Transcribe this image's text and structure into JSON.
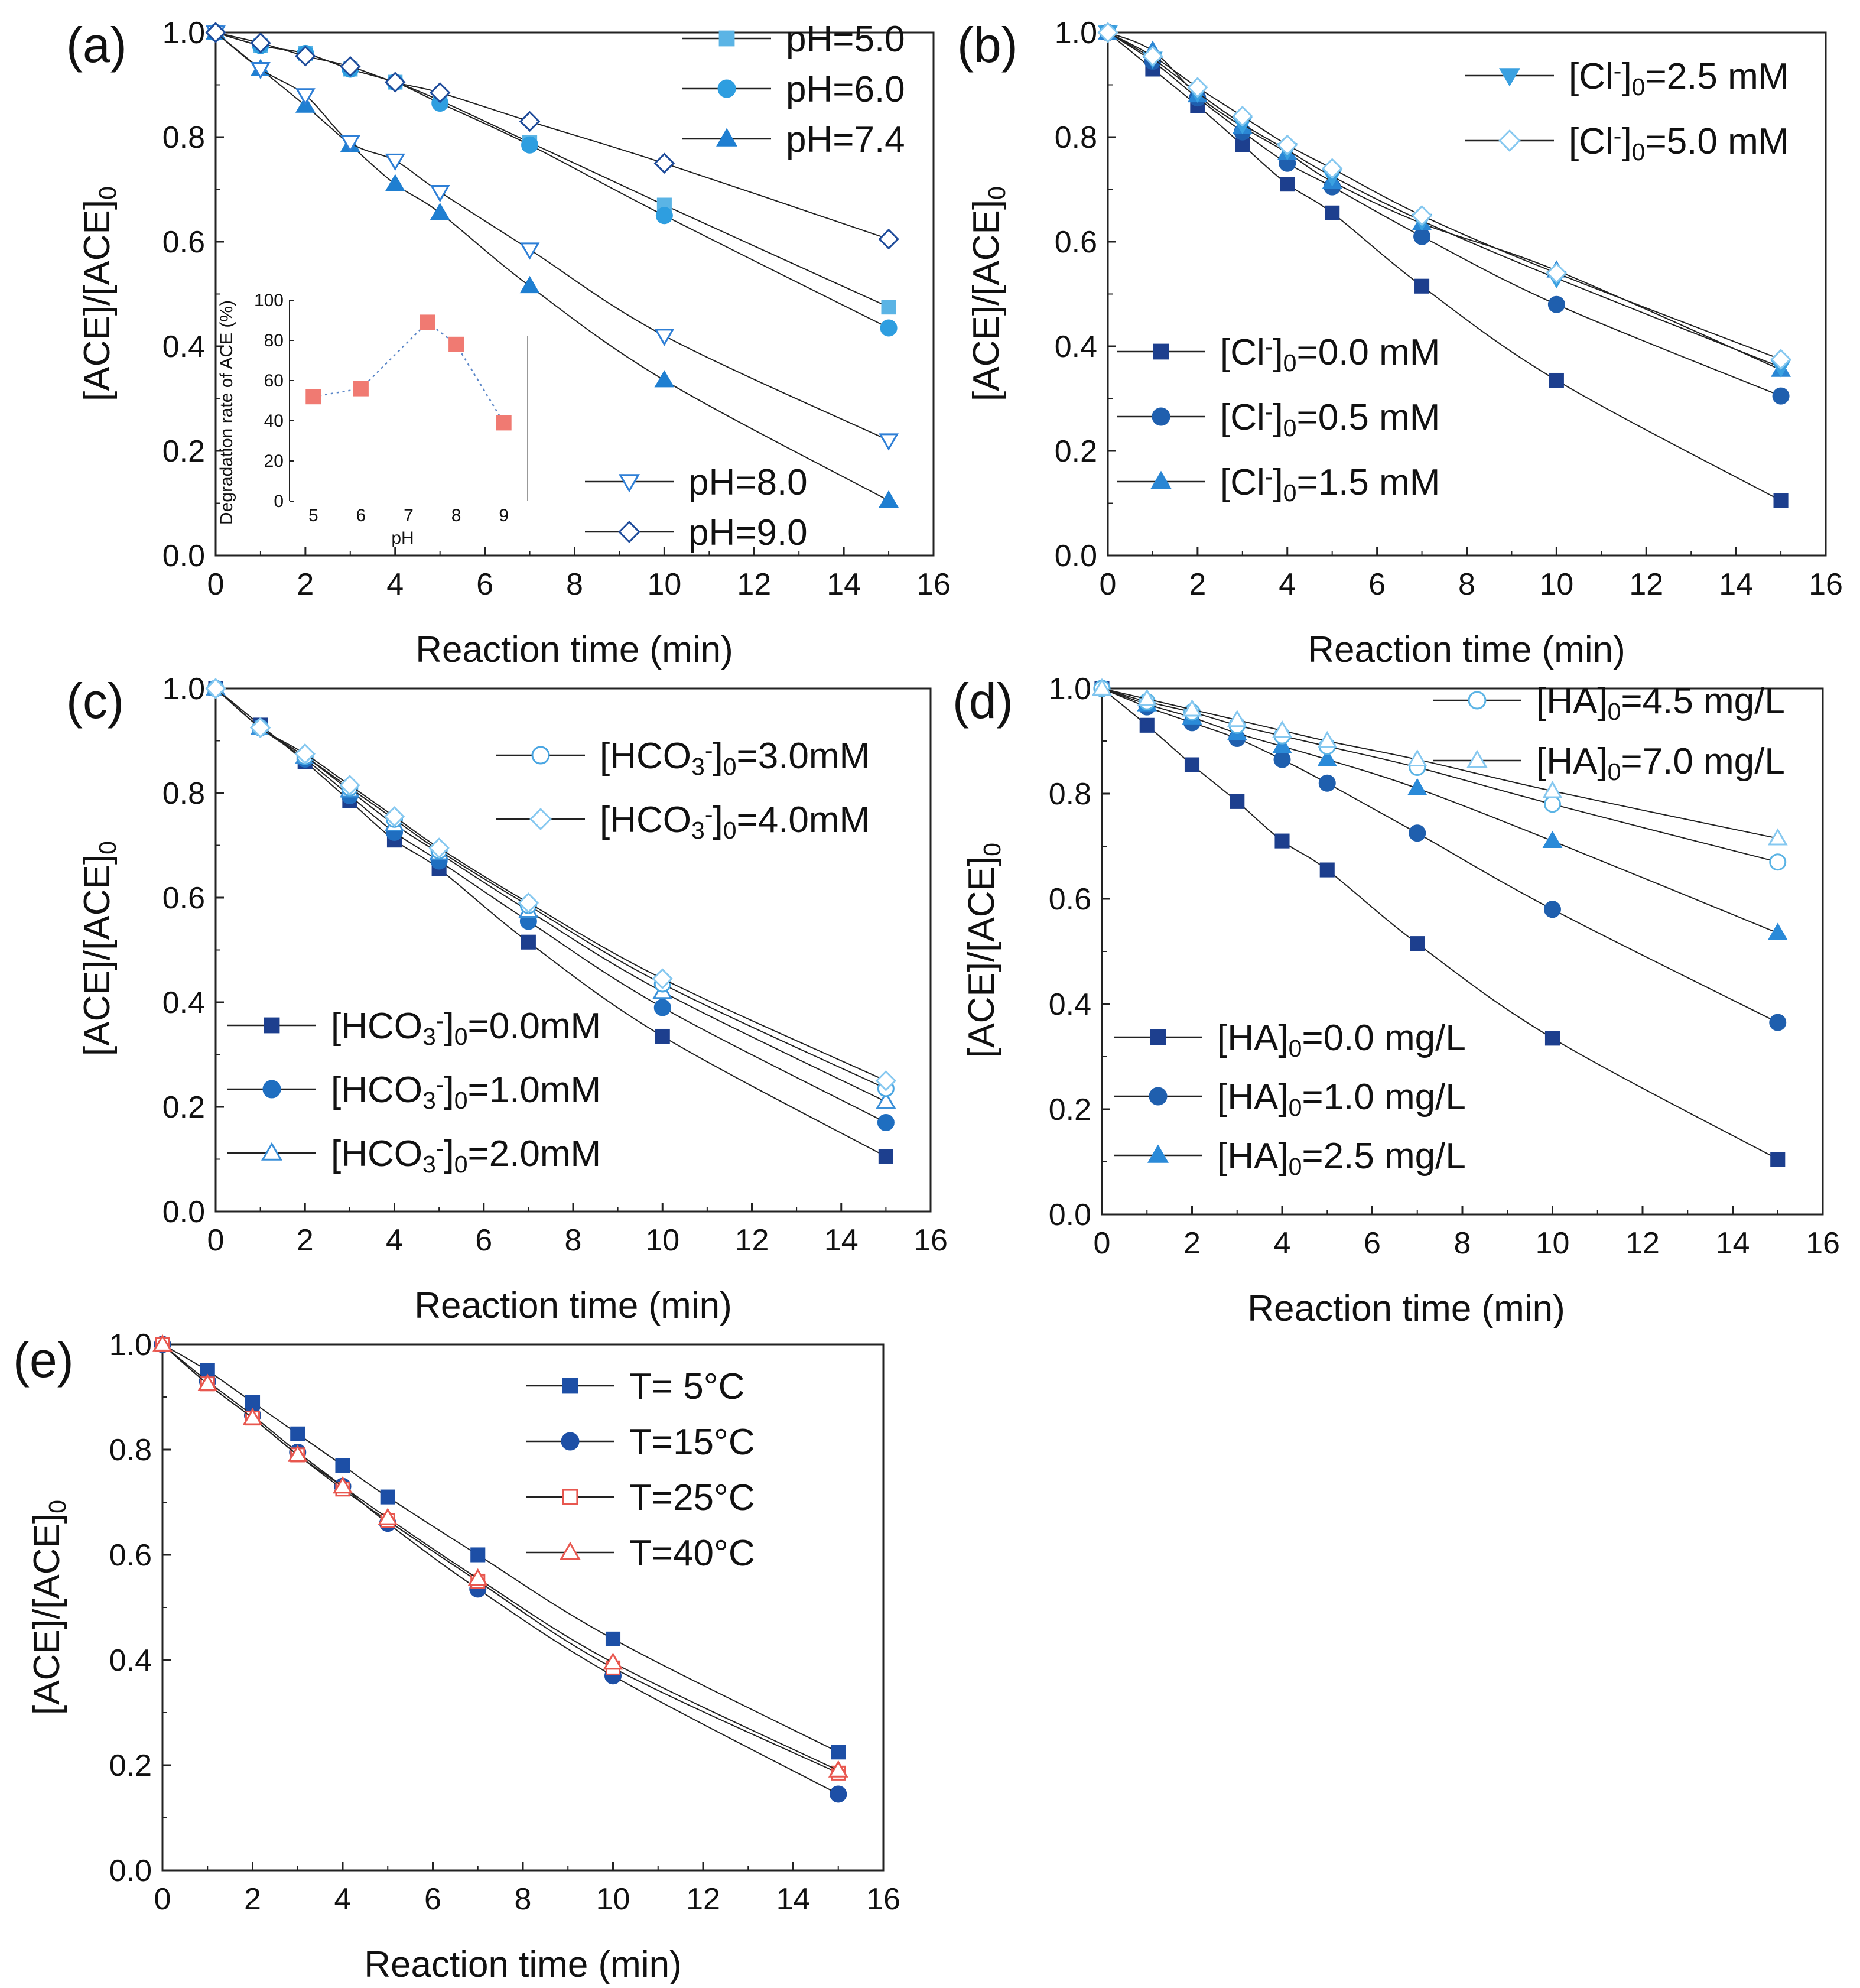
{
  "figure": {
    "panel_letters": [
      "(a)",
      "(b)",
      "(c)",
      "(d)",
      "(e)"
    ]
  },
  "chart_data": [
    {
      "type": "line",
      "panel": "(a)",
      "xlabel": "Reaction time (min)",
      "ylabel": "[ACE]/[ACE]₀",
      "xlim": [
        0,
        16
      ],
      "ylim": [
        0,
        1.0
      ],
      "xticks": [
        "0",
        "2",
        "4",
        "6",
        "8",
        "10",
        "12",
        "14",
        "16"
      ],
      "yticks": [
        "0.0",
        "0.2",
        "0.4",
        "0.6",
        "0.8",
        "1.0"
      ],
      "grid": false,
      "x": [
        0,
        1,
        2,
        3,
        4,
        5,
        7,
        10,
        15
      ],
      "series": [
        {
          "name": "pH=5.0",
          "marker": "square",
          "filled": true,
          "color": "#5bb4e5",
          "line": true,
          "values": [
            1.0,
            0.975,
            0.96,
            0.93,
            0.905,
            0.87,
            0.79,
            0.67,
            0.475
          ]
        },
        {
          "name": "pH=6.0",
          "marker": "circle",
          "filled": true,
          "color": "#2e9ee0",
          "line": true,
          "values": [
            1.0,
            0.975,
            0.96,
            0.93,
            0.905,
            0.865,
            0.785,
            0.65,
            0.435
          ]
        },
        {
          "name": "pH=7.4",
          "marker": "triangle",
          "filled": true,
          "color": "#1f7fd1",
          "line": true,
          "values": [
            1.0,
            0.93,
            0.86,
            0.785,
            0.71,
            0.655,
            0.515,
            0.335,
            0.105
          ]
        },
        {
          "name": "pH=8.0",
          "marker": "triangle-down",
          "filled": false,
          "color": "#2e7fd6",
          "line": true,
          "values": [
            1.0,
            0.93,
            0.88,
            0.79,
            0.755,
            0.695,
            0.585,
            0.42,
            0.22
          ]
        },
        {
          "name": "pH=9.0",
          "marker": "diamond",
          "filled": false,
          "color": "#1e4b9a",
          "line": true,
          "values": [
            1.0,
            0.98,
            0.955,
            0.935,
            0.905,
            0.885,
            0.83,
            0.75,
            0.605
          ]
        }
      ],
      "legend_top": {
        "position": "top-right",
        "entries": [
          "pH=5.0",
          "pH=6.0",
          "pH=7.4"
        ]
      },
      "legend_bottom": {
        "position": "bottom-right",
        "entries": [
          "pH=8.0",
          "pH=9.0"
        ]
      },
      "inset": {
        "type": "scatter",
        "xlabel": "pH",
        "ylabel": "Degradation rate of ACE (%)",
        "xticks": [
          "5",
          "6",
          "7",
          "8",
          "9"
        ],
        "yticks": [
          "0",
          "20",
          "40",
          "60",
          "80",
          "100"
        ],
        "xlim": [
          4.5,
          9.5
        ],
        "ylim": [
          0,
          100
        ],
        "color": "#f07a72",
        "x": [
          5.0,
          6.0,
          7.4,
          8.0,
          9.0
        ],
        "values": [
          52,
          56,
          89,
          78,
          39
        ]
      }
    },
    {
      "type": "line",
      "panel": "(b)",
      "xlabel": "Reaction time (min)",
      "ylabel": "[ACE]/[ACE]₀",
      "xlim": [
        0,
        16
      ],
      "ylim": [
        0,
        1.0
      ],
      "xticks": [
        "0",
        "2",
        "4",
        "6",
        "8",
        "10",
        "12",
        "14",
        "16"
      ],
      "yticks": [
        "0.0",
        "0.2",
        "0.4",
        "0.6",
        "0.8",
        "1.0"
      ],
      "grid": false,
      "x": [
        0,
        1,
        2,
        3,
        4,
        5,
        7,
        10,
        15
      ],
      "series": [
        {
          "name": "[Cl⁻]₀=0.0 mM",
          "marker": "square",
          "filled": true,
          "color": "#1d3f8e",
          "line": true,
          "values": [
            1.0,
            0.93,
            0.86,
            0.785,
            0.71,
            0.655,
            0.515,
            0.335,
            0.105
          ]
        },
        {
          "name": "[Cl⁻]₀=0.5 mM",
          "marker": "circle",
          "filled": true,
          "color": "#1f5fae",
          "line": true,
          "values": [
            1.0,
            0.945,
            0.875,
            0.81,
            0.75,
            0.705,
            0.61,
            0.48,
            0.305
          ]
        },
        {
          "name": "[Cl⁻]₀=1.5 mM",
          "marker": "triangle",
          "filled": true,
          "color": "#2a86d4",
          "line": true,
          "values": [
            1.0,
            0.965,
            0.88,
            0.82,
            0.77,
            0.715,
            0.635,
            0.545,
            0.355
          ]
        },
        {
          "name": "[Cl⁻]₀=2.5 mM",
          "marker": "triangle-down",
          "filled": true,
          "color": "#3aa0e0",
          "line": true,
          "values": [
            1.0,
            0.95,
            0.885,
            0.825,
            0.775,
            0.725,
            0.64,
            0.53,
            0.36
          ]
        },
        {
          "name": "[Cl⁻]₀=5.0 mM",
          "marker": "diamond",
          "filled": false,
          "color": "#86c8f0",
          "line": true,
          "values": [
            1.0,
            0.955,
            0.895,
            0.84,
            0.785,
            0.74,
            0.65,
            0.54,
            0.375
          ]
        }
      ],
      "legend_top": {
        "position": "top-right",
        "entries": [
          "[Cl⁻]₀=2.5 mM",
          "[Cl⁻]₀=5.0 mM"
        ]
      },
      "legend_bottom": {
        "position": "bottom-left",
        "entries": [
          "[Cl⁻]₀=0.0 mM",
          "[Cl⁻]₀=0.5 mM",
          "[Cl⁻]₀=1.5 mM"
        ]
      }
    },
    {
      "type": "line",
      "panel": "(c)",
      "xlabel": "Reaction time (min)",
      "ylabel": "[ACE]/[ACE]₀",
      "xlim": [
        0,
        16
      ],
      "ylim": [
        0,
        1.0
      ],
      "xticks": [
        "0",
        "2",
        "4",
        "6",
        "8",
        "10",
        "12",
        "14",
        "16"
      ],
      "yticks": [
        "0.0",
        "0.2",
        "0.4",
        "0.6",
        "0.8",
        "1.0"
      ],
      "grid": false,
      "x": [
        0,
        1,
        2,
        3,
        4,
        5,
        7,
        10,
        15
      ],
      "series": [
        {
          "name": "[HCO₃⁻]₀=0.0mM",
          "marker": "square",
          "filled": true,
          "color": "#1d3f8e",
          "line": true,
          "values": [
            1.0,
            0.93,
            0.86,
            0.785,
            0.71,
            0.655,
            0.515,
            0.335,
            0.105
          ]
        },
        {
          "name": "[HCO₃⁻]₀=1.0mM",
          "marker": "circle",
          "filled": true,
          "color": "#1f6ec0",
          "line": true,
          "values": [
            1.0,
            0.925,
            0.865,
            0.795,
            0.725,
            0.67,
            0.555,
            0.39,
            0.17
          ]
        },
        {
          "name": "[HCO₃⁻]₀=2.0mM",
          "marker": "triangle",
          "filled": false,
          "color": "#3a8fd8",
          "line": true,
          "values": [
            1.0,
            0.925,
            0.87,
            0.805,
            0.74,
            0.685,
            0.575,
            0.42,
            0.21
          ]
        },
        {
          "name": "[HCO₃⁻]₀=3.0mM",
          "marker": "circle",
          "filled": false,
          "color": "#4aa6e2",
          "line": true,
          "values": [
            1.0,
            0.925,
            0.87,
            0.81,
            0.75,
            0.69,
            0.585,
            0.435,
            0.235
          ]
        },
        {
          "name": "[HCO₃⁻]₀=4.0mM",
          "marker": "diamond",
          "filled": false,
          "color": "#86c8f0",
          "line": true,
          "values": [
            1.0,
            0.925,
            0.875,
            0.815,
            0.755,
            0.695,
            0.59,
            0.445,
            0.25
          ]
        }
      ],
      "legend_top": {
        "position": "top-right",
        "entries": [
          "[HCO₃⁻]₀=3.0mM",
          "[HCO₃⁻]₀=4.0mM"
        ]
      },
      "legend_bottom": {
        "position": "bottom-left",
        "entries": [
          "[HCO₃⁻]₀=0.0mM",
          "[HCO₃⁻]₀=1.0mM",
          "[HCO₃⁻]₀=2.0mM"
        ]
      }
    },
    {
      "type": "line",
      "panel": "(d)",
      "xlabel": "Reaction time (min)",
      "ylabel": "[ACE]/[ACE]₀",
      "xlim": [
        0,
        16
      ],
      "ylim": [
        0,
        1.0
      ],
      "xticks": [
        "0",
        "2",
        "4",
        "6",
        "8",
        "10",
        "12",
        "14",
        "16"
      ],
      "yticks": [
        "0.0",
        "0.2",
        "0.4",
        "0.6",
        "0.8",
        "1.0"
      ],
      "grid": false,
      "x": [
        0,
        1,
        2,
        3,
        4,
        5,
        7,
        10,
        15
      ],
      "series": [
        {
          "name": "[HA]₀=0.0 mg/L",
          "marker": "square",
          "filled": true,
          "color": "#1d3f8e",
          "line": true,
          "values": [
            1.0,
            0.93,
            0.855,
            0.785,
            0.71,
            0.655,
            0.515,
            0.335,
            0.105
          ]
        },
        {
          "name": "[HA]₀=1.0 mg/L",
          "marker": "circle",
          "filled": true,
          "color": "#1f5fae",
          "line": true,
          "values": [
            1.0,
            0.965,
            0.935,
            0.905,
            0.865,
            0.82,
            0.725,
            0.58,
            0.365
          ]
        },
        {
          "name": "[HA]₀=2.5 mg/L",
          "marker": "triangle",
          "filled": true,
          "color": "#2a8ad8",
          "line": true,
          "values": [
            1.0,
            0.97,
            0.945,
            0.915,
            0.89,
            0.865,
            0.81,
            0.71,
            0.535
          ]
        },
        {
          "name": "[HA]₀=4.5 mg/L",
          "marker": "circle",
          "filled": false,
          "color": "#5bb4e5",
          "line": true,
          "values": [
            1.0,
            0.975,
            0.955,
            0.93,
            0.91,
            0.89,
            0.85,
            0.78,
            0.67
          ]
        },
        {
          "name": "[HA]₀=7.0 mg/L",
          "marker": "triangle",
          "filled": false,
          "color": "#86c8f0",
          "line": true,
          "values": [
            1.0,
            0.98,
            0.96,
            0.94,
            0.92,
            0.9,
            0.865,
            0.805,
            0.715
          ]
        }
      ],
      "legend_top": {
        "position": "top-right",
        "entries": [
          "[HA]₀=4.5 mg/L",
          "[HA]₀=7.0 mg/L"
        ]
      },
      "legend_bottom": {
        "position": "bottom-left",
        "entries": [
          "[HA]₀=0.0 mg/L",
          "[HA]₀=1.0 mg/L",
          "[HA]₀=2.5 mg/L"
        ]
      }
    },
    {
      "type": "line",
      "panel": "(e)",
      "xlabel": "Reaction time (min)",
      "ylabel": "[ACE]/[ACE]₀",
      "xlim": [
        0,
        16
      ],
      "ylim": [
        0,
        1.0
      ],
      "xticks": [
        "0",
        "2",
        "4",
        "6",
        "8",
        "10",
        "12",
        "14",
        "16"
      ],
      "yticks": [
        "0.0",
        "0.2",
        "0.4",
        "0.6",
        "0.8",
        "1.0"
      ],
      "grid": false,
      "x": [
        0,
        1,
        2,
        3,
        4,
        5,
        7,
        10,
        15
      ],
      "series": [
        {
          "name": "T= 5°C",
          "marker": "square",
          "filled": true,
          "color": "#1d4fa6",
          "line": true,
          "values": [
            1.0,
            0.95,
            0.89,
            0.83,
            0.77,
            0.71,
            0.6,
            0.44,
            0.225
          ]
        },
        {
          "name": "T=15°C",
          "marker": "circle",
          "filled": true,
          "color": "#1d4fa6",
          "line": true,
          "values": [
            1.0,
            0.93,
            0.865,
            0.795,
            0.73,
            0.66,
            0.535,
            0.37,
            0.145
          ]
        },
        {
          "name": "T=25°C",
          "marker": "square",
          "filled": false,
          "color": "#e8574f",
          "line": true,
          "values": [
            1.0,
            0.925,
            0.86,
            0.79,
            0.725,
            0.665,
            0.55,
            0.385,
            0.185
          ]
        },
        {
          "name": "T=40°C",
          "marker": "triangle",
          "filled": false,
          "color": "#e8574f",
          "line": true,
          "values": [
            1.0,
            0.925,
            0.86,
            0.79,
            0.73,
            0.67,
            0.555,
            0.395,
            0.19
          ]
        }
      ],
      "legend_top": {
        "position": "top-right",
        "entries": [
          "T= 5°C",
          "T=15°C",
          "T=25°C",
          "T=40°C"
        ]
      },
      "legend_bottom": {
        "position": "none",
        "entries": []
      }
    }
  ]
}
